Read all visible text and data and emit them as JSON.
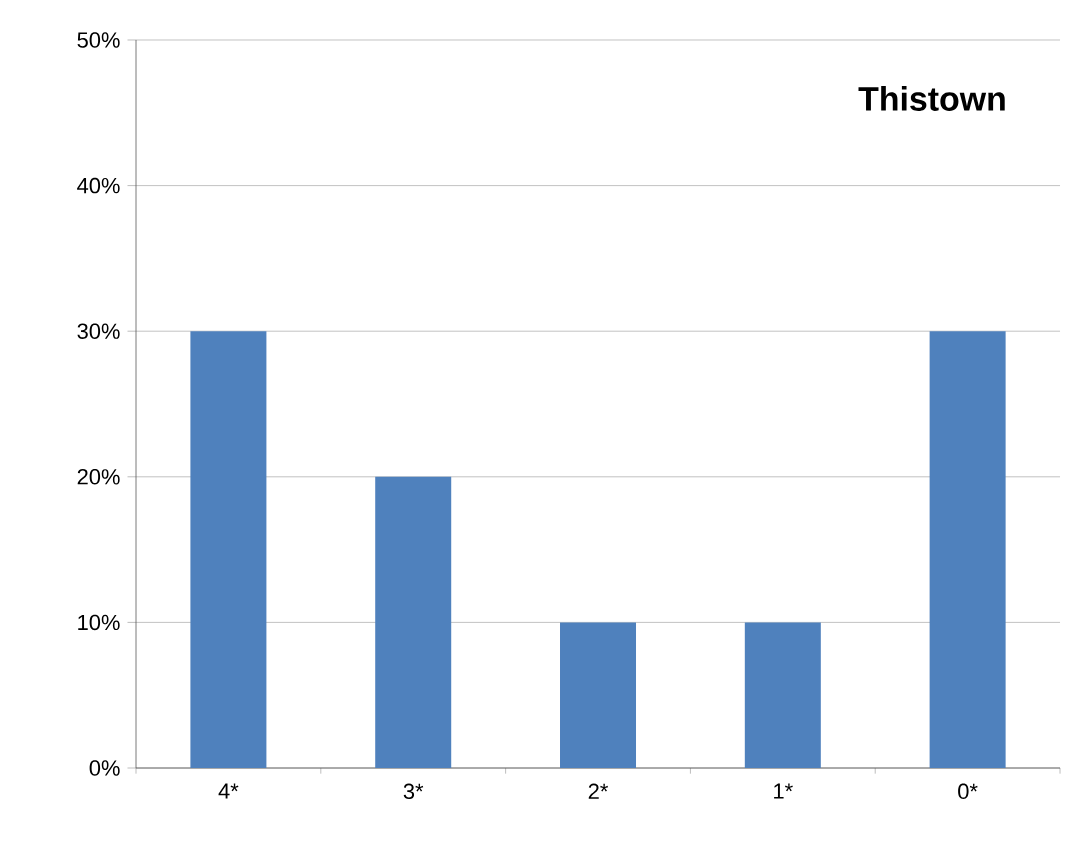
{
  "chart_data": {
    "type": "bar",
    "title": "Thistown",
    "categories": [
      "4*",
      "3*",
      "2*",
      "1*",
      "0*"
    ],
    "values": [
      30,
      20,
      10,
      10,
      30
    ],
    "color": "#4f81bd",
    "ylim": [
      0,
      50
    ],
    "yticks": [
      {
        "value": 0,
        "label": "0%"
      },
      {
        "value": 10,
        "label": "10%"
      },
      {
        "value": 20,
        "label": "20%"
      },
      {
        "value": 30,
        "label": "30%"
      },
      {
        "value": 40,
        "label": "40%"
      },
      {
        "value": 50,
        "label": "50%"
      }
    ],
    "grid": "y"
  }
}
